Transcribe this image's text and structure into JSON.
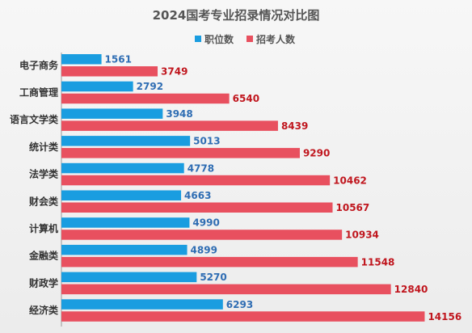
{
  "chart_data": {
    "type": "bar",
    "orientation": "horizontal",
    "title": "2024国考专业招录情况对比图",
    "categories": [
      "电子商务",
      "工商管理",
      "语言文学类",
      "统计类",
      "法学类",
      "财会类",
      "计算机",
      "金融类",
      "财政学",
      "经济类"
    ],
    "series": [
      {
        "name": "职位数",
        "color": "#1a9de0",
        "label_color": "#2f6db3",
        "values": [
          1561,
          2792,
          3948,
          5013,
          4778,
          4663,
          4990,
          4899,
          5270,
          6293
        ]
      },
      {
        "name": "招考人数",
        "color": "#e8505f",
        "label_color": "#c0161e",
        "values": [
          3749,
          6540,
          8439,
          9290,
          10462,
          10567,
          10934,
          11548,
          12840,
          14156
        ]
      }
    ],
    "xlim": [
      0,
      16000
    ],
    "grid": false,
    "legend_position": "top-center",
    "data_labels": true
  }
}
